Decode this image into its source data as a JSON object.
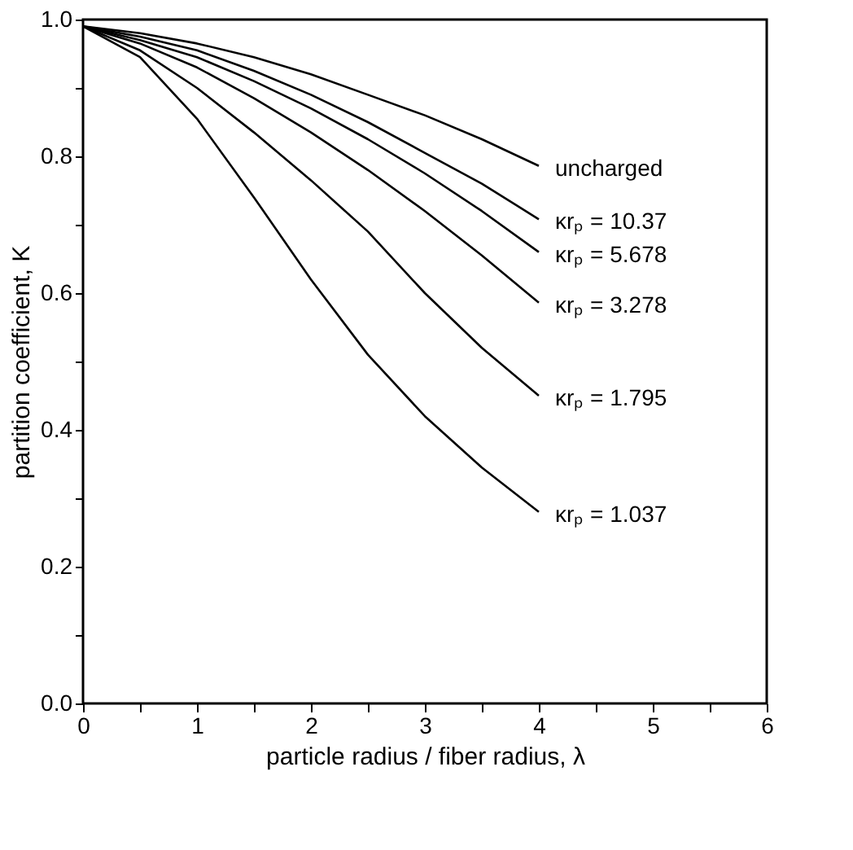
{
  "chart_data": {
    "type": "line",
    "xlabel": "particle radius / fiber radius, λ",
    "ylabel": "partition coefficient, K",
    "x": [
      0,
      0.5,
      1,
      1.5,
      2,
      2.5,
      3,
      3.5,
      4
    ],
    "series": [
      {
        "name": "uncharged",
        "color": "#000000",
        "values": [
          0.99,
          0.98,
          0.965,
          0.945,
          0.92,
          0.89,
          0.86,
          0.825,
          0.786
        ]
      },
      {
        "name": "κrₚ = 10.37",
        "color": "#000000",
        "values": [
          0.99,
          0.975,
          0.955,
          0.925,
          0.89,
          0.85,
          0.805,
          0.76,
          0.708
        ]
      },
      {
        "name": "κrₚ = 5.678",
        "color": "#000000",
        "values": [
          0.99,
          0.97,
          0.945,
          0.91,
          0.87,
          0.825,
          0.775,
          0.72,
          0.66
        ]
      },
      {
        "name": "κrₚ = 3.278",
        "color": "#000000",
        "values": [
          0.99,
          0.965,
          0.93,
          0.885,
          0.835,
          0.78,
          0.72,
          0.655,
          0.586
        ]
      },
      {
        "name": "κrₚ = 1.795",
        "color": "#000000",
        "values": [
          0.99,
          0.955,
          0.9,
          0.835,
          0.765,
          0.69,
          0.6,
          0.52,
          0.45
        ]
      },
      {
        "name": "κrₚ = 1.037",
        "color": "#000000",
        "values": [
          0.99,
          0.945,
          0.855,
          0.74,
          0.62,
          0.51,
          0.42,
          0.345,
          0.28
        ]
      }
    ],
    "xlim": [
      0,
      6
    ],
    "xticks": [
      0,
      {
        "value": 0.5,
        "label": null
      },
      1,
      {
        "value": 1.5,
        "label": null
      },
      2,
      {
        "value": 2.5,
        "label": null
      },
      3,
      {
        "value": 3.5,
        "label": null
      },
      4,
      {
        "value": 4.5,
        "label": null
      },
      5,
      {
        "value": 5.5,
        "label": null
      },
      6
    ],
    "ylim": [
      0,
      1
    ],
    "yticks": [
      {
        "value": 0,
        "label": "0.0"
      },
      {
        "value": 0.1,
        "label": null
      },
      {
        "value": 0.2,
        "label": "0.2"
      },
      {
        "value": 0.3,
        "label": null
      },
      {
        "value": 0.4,
        "label": "0.4"
      },
      {
        "value": 0.5,
        "label": null
      },
      {
        "value": 0.6,
        "label": "0.6"
      },
      {
        "value": 0.7,
        "label": null
      },
      {
        "value": 0.8,
        "label": "0.8"
      },
      {
        "value": 0.9,
        "label": null
      },
      {
        "value": 1,
        "label": "1.0"
      }
    ],
    "grid": false,
    "legend": false,
    "marker": "none",
    "line_style": "solid"
  }
}
